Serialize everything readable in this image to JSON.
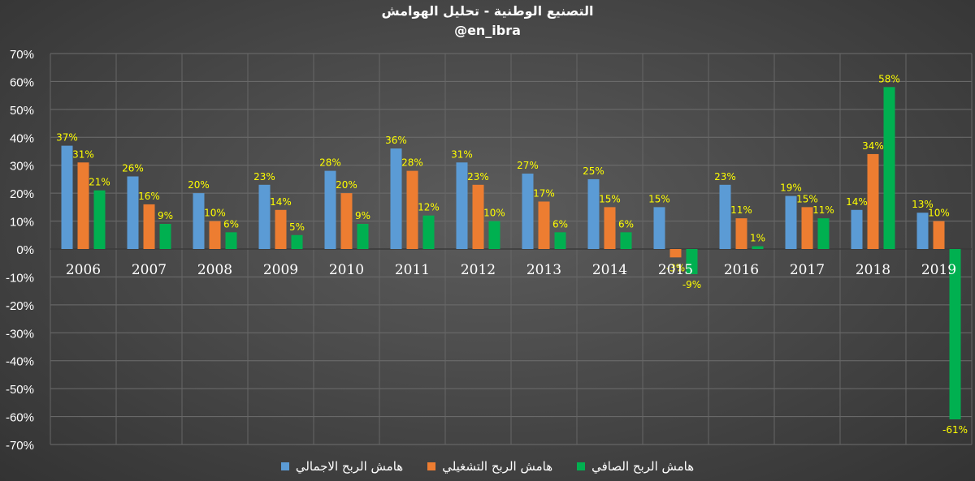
{
  "chart_data": {
    "type": "bar",
    "title": "التصنيع الوطنية - تحليل الهوامش",
    "subtitle": "@en_ibra",
    "categories": [
      "2006",
      "2007",
      "2008",
      "2009",
      "2010",
      "2011",
      "2012",
      "2013",
      "2014",
      "2015",
      "2016",
      "2017",
      "2018",
      "2019"
    ],
    "series": [
      {
        "name": "هامش الربح الاجمالي",
        "color": "#5b9bd5",
        "values": [
          37,
          26,
          20,
          23,
          28,
          36,
          31,
          27,
          25,
          15,
          23,
          19,
          14,
          13
        ],
        "labels": [
          "37%",
          "26%",
          "20%",
          "23%",
          "28%",
          "36%",
          "31%",
          "27%",
          "25%",
          "15%",
          "23%",
          "19%",
          "14%",
          "13%"
        ]
      },
      {
        "name": "هامش الربح التشغيلي",
        "color": "#ed7d31",
        "values": [
          31,
          16,
          10,
          14,
          20,
          28,
          23,
          17,
          15,
          -3,
          11,
          15,
          34,
          10
        ],
        "labels": [
          "31%",
          "16%",
          "10%",
          "14%",
          "20%",
          "28%",
          "23%",
          "17%",
          "15%",
          "-3%",
          "11%",
          "15%",
          "34%",
          "10%"
        ]
      },
      {
        "name": "هامش الربح الصافي",
        "color": "#00b050",
        "values": [
          21,
          9,
          6,
          5,
          9,
          12,
          10,
          6,
          6,
          -9,
          1,
          11,
          58,
          -61
        ],
        "labels": [
          "21%",
          "9%",
          "6%",
          "5%",
          "9%",
          "12%",
          "10%",
          "6%",
          "6%",
          "-9%",
          "1%",
          "11%",
          "58%",
          "-61%"
        ]
      }
    ],
    "ylim": [
      -70,
      70
    ],
    "yticks": [
      70,
      60,
      50,
      40,
      30,
      20,
      10,
      0,
      -10,
      -20,
      -30,
      -40,
      -50,
      -60,
      -70
    ],
    "ytick_labels": [
      "70%",
      "60%",
      "50%",
      "40%",
      "30%",
      "20%",
      "10%",
      "0%",
      "-10%",
      "-20%",
      "-30%",
      "-40%",
      "-50%",
      "-60%",
      "-70%"
    ],
    "data_label_color": "#ffff00",
    "grid": true,
    "legend_position": "bottom"
  }
}
